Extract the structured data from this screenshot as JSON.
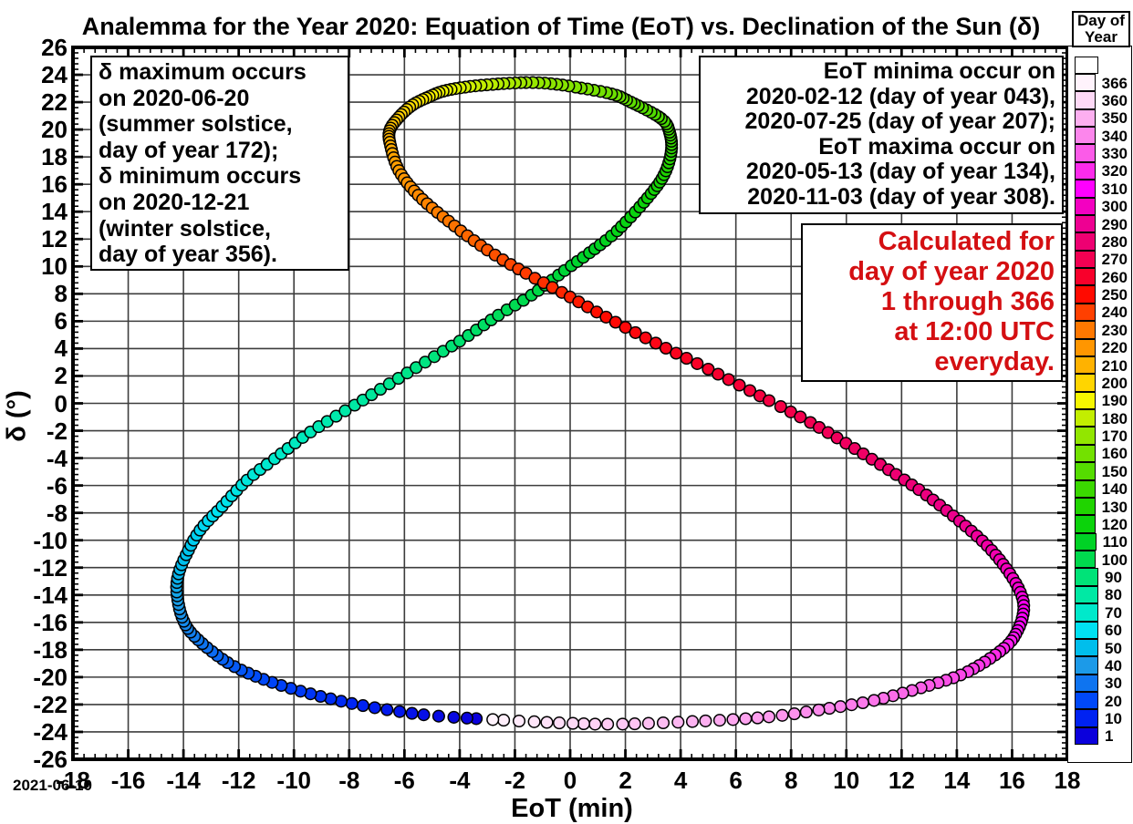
{
  "title": "Analemma for the Year 2020: Equation of Time (EoT) vs. Declination of the Sun (δ)",
  "date_stamp": "2021-06-10",
  "annotations": {
    "solstice_note": "δ maximum occurs\non 2020-06-20\n(summer solstice,\nday of year 172);\nδ minimum occurs\non 2020-12-21\n(winter solstice,\nday of year 356).",
    "eot_extrema_note": "EoT minima occur on\n2020-02-12 (day of year 043),\n2020-07-25 (day of year 207);\nEoT maxima occur on\n2020-05-13 (day of year 134),\n2020-11-03 (day of year 308).",
    "calculated_note": "Calculated for\nday of year 2020\n1 through 366\nat 12:00 UTC\neveryday.",
    "calculated_note_color": "#D40F12"
  },
  "chart_data": {
    "type": "scatter",
    "title": "Analemma for the Year 2020: Equation of Time (EoT) vs. Declination of the Sun (δ)",
    "xlabel": "EoT (min)",
    "ylabel": "δ (°)",
    "xlim": [
      -18,
      18
    ],
    "ylim": [
      -26,
      26
    ],
    "x_major_step": 2,
    "y_major_step": 2,
    "minor_tick_step": 0.4,
    "grid": true,
    "grid_color": "#3d3d3d",
    "marker": "circle",
    "marker_outline": "#000000",
    "day_range": [
      1,
      366
    ],
    "anchors_day_eot_dec": [
      [
        1,
        -3.4,
        -23.03
      ],
      [
        5,
        -5.3,
        -22.75
      ],
      [
        10,
        -7.5,
        -22.08
      ],
      [
        15,
        -9.4,
        -21.22
      ],
      [
        20,
        -11.1,
        -20.16
      ],
      [
        25,
        -12.4,
        -18.94
      ],
      [
        32,
        -13.6,
        -17.02
      ],
      [
        37,
        -14.05,
        -15.62
      ],
      [
        43,
        -14.24,
        -13.78
      ],
      [
        47,
        -14.18,
        -12.46
      ],
      [
        51,
        -13.9,
        -11.06
      ],
      [
        56,
        -13.4,
        -9.26
      ],
      [
        61,
        -12.6,
        -7.53
      ],
      [
        66,
        -11.7,
        -5.61
      ],
      [
        70,
        -10.7,
        -4.05
      ],
      [
        75,
        -9.4,
        -2.09
      ],
      [
        80,
        -7.8,
        -0.13
      ],
      [
        86,
        -5.9,
        2.22
      ],
      [
        92,
        -4.0,
        4.54
      ],
      [
        97,
        -2.6,
        6.44
      ],
      [
        101,
        -1.4,
        7.9
      ],
      [
        106,
        -0.2,
        9.7
      ],
      [
        110,
        0.7,
        11.0
      ],
      [
        115,
        1.7,
        12.6
      ],
      [
        122,
        2.8,
        15.0
      ],
      [
        128,
        3.4,
        16.7
      ],
      [
        134,
        3.66,
        18.4
      ],
      [
        140,
        3.6,
        19.8
      ],
      [
        145,
        3.3,
        20.8
      ],
      [
        153,
        2.2,
        22.0
      ],
      [
        158,
        1.5,
        22.6
      ],
      [
        164,
        0.2,
        23.1
      ],
      [
        168,
        -0.7,
        23.35
      ],
      [
        172,
        -1.6,
        23.43
      ],
      [
        178,
        -2.8,
        23.3
      ],
      [
        183,
        -3.8,
        23.1
      ],
      [
        188,
        -4.6,
        22.8
      ],
      [
        192,
        -5.1,
        22.4
      ],
      [
        197,
        -5.7,
        21.8
      ],
      [
        202,
        -6.2,
        20.9
      ],
      [
        207,
        -6.54,
        19.9
      ],
      [
        212,
        -6.5,
        18.8
      ],
      [
        218,
        -6.2,
        17.0
      ],
      [
        224,
        -5.5,
        15.2
      ],
      [
        230,
        -4.4,
        13.3
      ],
      [
        236,
        -3.0,
        11.2
      ],
      [
        241,
        -1.6,
        9.5
      ],
      [
        245,
        -0.3,
        8.1
      ],
      [
        250,
        1.3,
        6.3
      ],
      [
        255,
        3.1,
        4.4
      ],
      [
        260,
        5.0,
        2.5
      ],
      [
        266,
        7.2,
        0.2
      ],
      [
        270,
        8.7,
        -1.4
      ],
      [
        275,
        10.3,
        -3.3
      ],
      [
        280,
        11.8,
        -5.2
      ],
      [
        284,
        12.9,
        -6.7
      ],
      [
        289,
        14.1,
        -8.6
      ],
      [
        294,
        15.1,
        -10.4
      ],
      [
        299,
        15.8,
        -12.1
      ],
      [
        304,
        16.3,
        -13.8
      ],
      [
        308,
        16.42,
        -15.1
      ],
      [
        313,
        16.2,
        -16.6
      ],
      [
        318,
        15.7,
        -17.9
      ],
      [
        325,
        14.4,
        -19.6
      ],
      [
        330,
        13.0,
        -20.6
      ],
      [
        336,
        11.0,
        -21.7
      ],
      [
        341,
        9.0,
        -22.4
      ],
      [
        345,
        7.2,
        -22.9
      ],
      [
        350,
        4.9,
        -23.2
      ],
      [
        356,
        1.9,
        -23.43
      ],
      [
        360,
        0.1,
        -23.38
      ],
      [
        363,
        -1.3,
        -23.26
      ],
      [
        366,
        -2.8,
        -23.1
      ]
    ],
    "colorbar": {
      "title": "Day of\nYear",
      "tick_labels": [
        366,
        360,
        350,
        340,
        330,
        320,
        310,
        300,
        290,
        280,
        270,
        260,
        250,
        240,
        230,
        220,
        210,
        200,
        190,
        180,
        170,
        160,
        150,
        140,
        130,
        120,
        110,
        100,
        90,
        80,
        70,
        60,
        50,
        40,
        30,
        20,
        10,
        1
      ],
      "stops": [
        [
          1,
          "#0B00DC"
        ],
        [
          10,
          "#0022F2"
        ],
        [
          20,
          "#0048F8"
        ],
        [
          30,
          "#0E74F0"
        ],
        [
          40,
          "#1C9AE8"
        ],
        [
          50,
          "#00BEEC"
        ],
        [
          60,
          "#00E1F2"
        ],
        [
          70,
          "#00E9CB"
        ],
        [
          80,
          "#00E9A4"
        ],
        [
          90,
          "#00E378"
        ],
        [
          100,
          "#00DA4E"
        ],
        [
          110,
          "#00D226"
        ],
        [
          120,
          "#0BD30B"
        ],
        [
          130,
          "#20D400"
        ],
        [
          140,
          "#3BD800"
        ],
        [
          150,
          "#55DC00"
        ],
        [
          160,
          "#73E100"
        ],
        [
          170,
          "#92E600"
        ],
        [
          180,
          "#C3EE00"
        ],
        [
          190,
          "#F6F600"
        ],
        [
          200,
          "#FFD500"
        ],
        [
          210,
          "#FFB200"
        ],
        [
          220,
          "#FF9600"
        ],
        [
          230,
          "#FF7800"
        ],
        [
          240,
          "#FF4000"
        ],
        [
          250,
          "#FF0A00"
        ],
        [
          260,
          "#F8002B"
        ],
        [
          270,
          "#F20052"
        ],
        [
          280,
          "#EE0072"
        ],
        [
          290,
          "#EE0092"
        ],
        [
          300,
          "#F300C1"
        ],
        [
          310,
          "#FF00FF"
        ],
        [
          320,
          "#FC2BEB"
        ],
        [
          330,
          "#FB5BE8"
        ],
        [
          340,
          "#FC86EC"
        ],
        [
          350,
          "#FDAFF0"
        ],
        [
          360,
          "#FED9F6"
        ],
        [
          366,
          "#FFF3FC"
        ]
      ]
    }
  }
}
